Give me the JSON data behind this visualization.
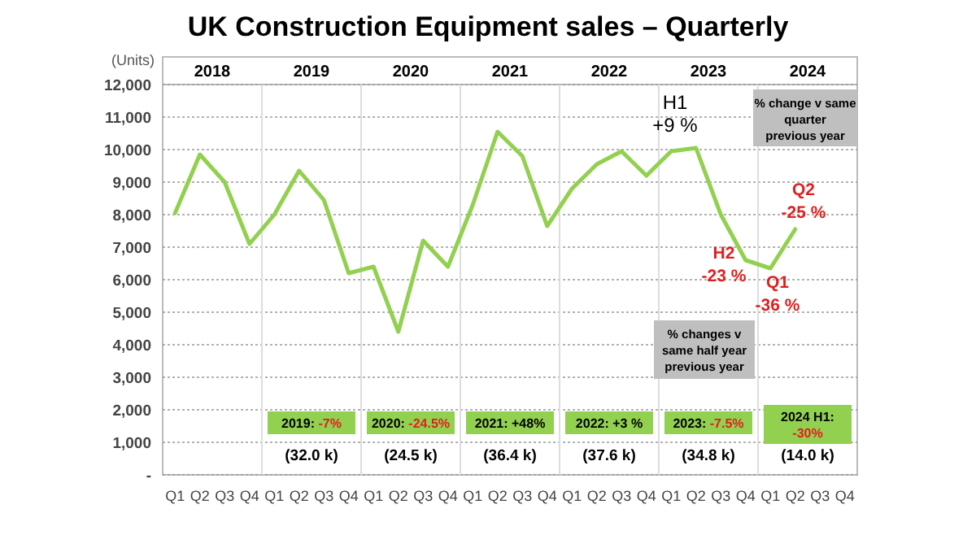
{
  "chart_data": {
    "type": "line",
    "title": "UK Construction Equipment sales – Quarterly",
    "ylabel": "(Units)",
    "categories": [
      "Q1",
      "Q2",
      "Q3",
      "Q4",
      "Q1",
      "Q2",
      "Q3",
      "Q4",
      "Q1",
      "Q2",
      "Q3",
      "Q4",
      "Q1",
      "Q2",
      "Q3",
      "Q4",
      "Q1",
      "Q2",
      "Q3",
      "Q4",
      "Q1",
      "Q2",
      "Q3",
      "Q4",
      "Q1",
      "Q2",
      "Q3",
      "Q4"
    ],
    "series": [
      {
        "color": "#92d050",
        "values": [
          8050,
          9850,
          9000,
          7100,
          8000,
          9350,
          8450,
          6200,
          6400,
          4400,
          7200,
          6400,
          8300,
          10550,
          9800,
          7650,
          8800,
          9550,
          9950,
          9200,
          9950,
          10050,
          8000,
          6600,
          6350,
          7550,
          null,
          null
        ]
      }
    ],
    "ylim": [
      0,
      12000
    ],
    "yticks": [
      {
        "value": 0,
        "label": "-"
      },
      {
        "value": 1000,
        "label": "1,000"
      },
      {
        "value": 2000,
        "label": "2,000"
      },
      {
        "value": 3000,
        "label": "3,000"
      },
      {
        "value": 4000,
        "label": "4,000"
      },
      {
        "value": 5000,
        "label": "5,000"
      },
      {
        "value": 6000,
        "label": "6,000"
      },
      {
        "value": 7000,
        "label": "7,000"
      },
      {
        "value": 8000,
        "label": "8,000"
      },
      {
        "value": 9000,
        "label": "9,000"
      },
      {
        "value": 10000,
        "label": "10,000"
      },
      {
        "value": 11000,
        "label": "11,000"
      },
      {
        "value": 12000,
        "label": "12,000"
      }
    ],
    "grid": "y",
    "marker": "none",
    "line_style": "solid",
    "annotations": [
      "2018",
      "2019",
      "2020",
      "2021",
      "2022",
      "2023",
      "2024",
      "2019: -7%",
      "2020: -24.5%",
      "2021: +48%",
      "2022: +3 %",
      "2023: -7.5%",
      "2024 H1: -30%",
      "(32.0 k)",
      "(24.5 k)",
      "(36.4 k)",
      "(37.6 k)",
      "(34.8 k)",
      "(14.0 k)",
      "% change v same quarter previous year",
      "% changes v same half year previous year",
      "H1 +9 %",
      "H2 -23 %",
      "Q1 -36 %",
      "Q2 -25 %"
    ]
  }
}
